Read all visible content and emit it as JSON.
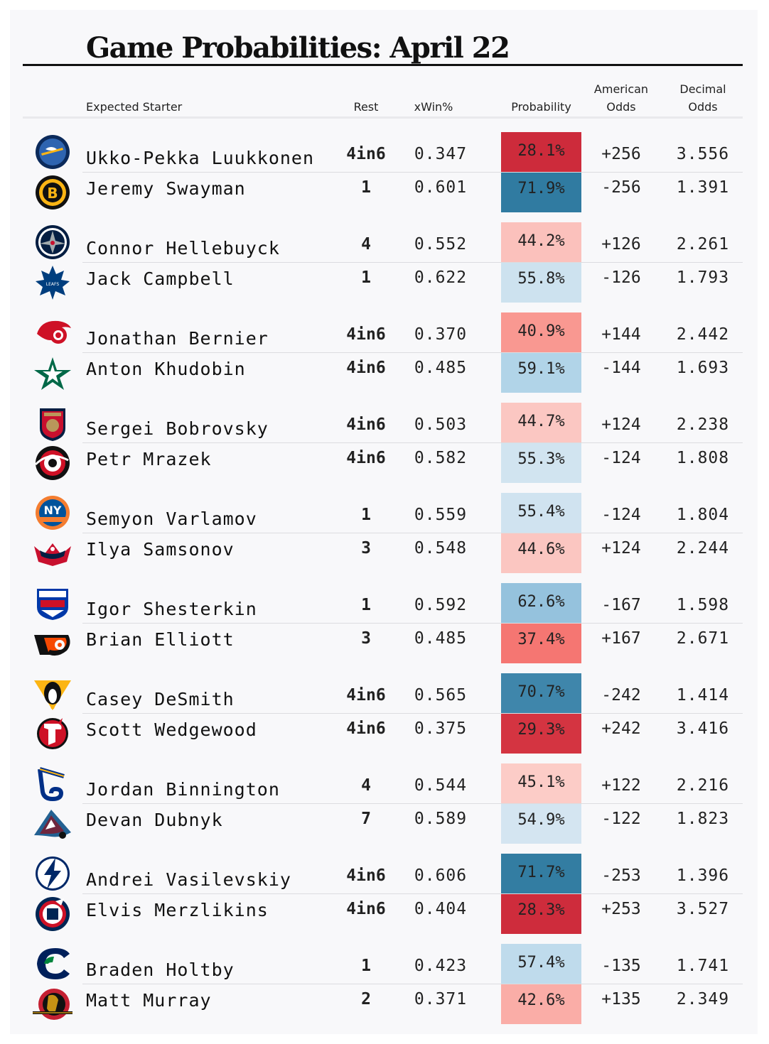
{
  "title": "Game Probabilities: April 22",
  "columns": {
    "starter": "Expected Starter",
    "rest": "Rest",
    "xwin": "xWin%",
    "probability": "Probability",
    "american_1": "American",
    "american_2": "Odds",
    "decimal_1": "Decimal",
    "decimal_2": "Odds"
  },
  "games": [
    {
      "teams": [
        {
          "logo": "sabres-logo",
          "starter": "Ukko-Pekka Luukkonen",
          "rest": "4in6",
          "xwin": "0.347",
          "probability": "28.1%",
          "prob_value": 28.1,
          "american": "+256",
          "decimal": "3.556"
        },
        {
          "logo": "bruins-logo",
          "starter": "Jeremy Swayman",
          "rest": "1",
          "xwin": "0.601",
          "probability": "71.9%",
          "prob_value": 71.9,
          "american": "-256",
          "decimal": "1.391"
        }
      ]
    },
    {
      "teams": [
        {
          "logo": "jets-logo",
          "starter": "Connor Hellebuyck",
          "rest": "4",
          "xwin": "0.552",
          "probability": "44.2%",
          "prob_value": 44.2,
          "american": "+126",
          "decimal": "2.261"
        },
        {
          "logo": "maple-leafs-logo",
          "starter": "Jack Campbell",
          "rest": "1",
          "xwin": "0.622",
          "probability": "55.8%",
          "prob_value": 55.8,
          "american": "-126",
          "decimal": "1.793"
        }
      ]
    },
    {
      "teams": [
        {
          "logo": "red-wings-logo",
          "starter": "Jonathan Bernier",
          "rest": "4in6",
          "xwin": "0.370",
          "probability": "40.9%",
          "prob_value": 40.9,
          "american": "+144",
          "decimal": "2.442"
        },
        {
          "logo": "stars-logo",
          "starter": "Anton Khudobin",
          "rest": "4in6",
          "xwin": "0.485",
          "probability": "59.1%",
          "prob_value": 59.1,
          "american": "-144",
          "decimal": "1.693"
        }
      ]
    },
    {
      "teams": [
        {
          "logo": "panthers-logo",
          "starter": "Sergei Bobrovsky",
          "rest": "4in6",
          "xwin": "0.503",
          "probability": "44.7%",
          "prob_value": 44.7,
          "american": "+124",
          "decimal": "2.238"
        },
        {
          "logo": "hurricanes-logo",
          "starter": "Petr Mrazek",
          "rest": "4in6",
          "xwin": "0.582",
          "probability": "55.3%",
          "prob_value": 55.3,
          "american": "-124",
          "decimal": "1.808"
        }
      ]
    },
    {
      "teams": [
        {
          "logo": "islanders-logo",
          "starter": "Semyon Varlamov",
          "rest": "1",
          "xwin": "0.559",
          "probability": "55.4%",
          "prob_value": 55.4,
          "american": "-124",
          "decimal": "1.804"
        },
        {
          "logo": "capitals-logo",
          "starter": "Ilya Samsonov",
          "rest": "3",
          "xwin": "0.548",
          "probability": "44.6%",
          "prob_value": 44.6,
          "american": "+124",
          "decimal": "2.244"
        }
      ]
    },
    {
      "teams": [
        {
          "logo": "rangers-logo",
          "starter": "Igor Shesterkin",
          "rest": "1",
          "xwin": "0.592",
          "probability": "62.6%",
          "prob_value": 62.6,
          "american": "-167",
          "decimal": "1.598"
        },
        {
          "logo": "flyers-logo",
          "starter": "Brian Elliott",
          "rest": "3",
          "xwin": "0.485",
          "probability": "37.4%",
          "prob_value": 37.4,
          "american": "+167",
          "decimal": "2.671"
        }
      ]
    },
    {
      "teams": [
        {
          "logo": "penguins-logo",
          "starter": "Casey DeSmith",
          "rest": "4in6",
          "xwin": "0.565",
          "probability": "70.7%",
          "prob_value": 70.7,
          "american": "-242",
          "decimal": "1.414"
        },
        {
          "logo": "devils-logo",
          "starter": "Scott Wedgewood",
          "rest": "4in6",
          "xwin": "0.375",
          "probability": "29.3%",
          "prob_value": 29.3,
          "american": "+242",
          "decimal": "3.416"
        }
      ]
    },
    {
      "teams": [
        {
          "logo": "blues-logo",
          "starter": "Jordan Binnington",
          "rest": "4",
          "xwin": "0.544",
          "probability": "45.1%",
          "prob_value": 45.1,
          "american": "+122",
          "decimal": "2.216"
        },
        {
          "logo": "avalanche-logo",
          "starter": "Devan Dubnyk",
          "rest": "7",
          "xwin": "0.589",
          "probability": "54.9%",
          "prob_value": 54.9,
          "american": "-122",
          "decimal": "1.823"
        }
      ]
    },
    {
      "teams": [
        {
          "logo": "lightning-logo",
          "starter": "Andrei Vasilevskiy",
          "rest": "4in6",
          "xwin": "0.606",
          "probability": "71.7%",
          "prob_value": 71.7,
          "american": "-253",
          "decimal": "1.396"
        },
        {
          "logo": "blue-jackets-logo",
          "starter": "Elvis Merzlikins",
          "rest": "4in6",
          "xwin": "0.404",
          "probability": "28.3%",
          "prob_value": 28.3,
          "american": "+253",
          "decimal": "3.527"
        }
      ]
    },
    {
      "teams": [
        {
          "logo": "canucks-logo",
          "starter": "Braden Holtby",
          "rest": "1",
          "xwin": "0.423",
          "probability": "57.4%",
          "prob_value": 57.4,
          "american": "-135",
          "decimal": "1.741"
        },
        {
          "logo": "senators-logo",
          "starter": "Matt Murray",
          "rest": "2",
          "xwin": "0.371",
          "probability": "42.6%",
          "prob_value": 42.6,
          "american": "+135",
          "decimal": "2.349"
        }
      ]
    }
  ],
  "chart_data": {
    "type": "table",
    "title": "Game Probabilities: April 22",
    "columns": [
      "Expected Starter",
      "Rest",
      "xWin%",
      "Probability",
      "American Odds",
      "Decimal Odds"
    ],
    "rows": [
      [
        "Ukko-Pekka Luukkonen",
        "4in6",
        0.347,
        28.1,
        "+256",
        3.556
      ],
      [
        "Jeremy Swayman",
        "1",
        0.601,
        71.9,
        "-256",
        1.391
      ],
      [
        "Connor Hellebuyck",
        "4",
        0.552,
        44.2,
        "+126",
        2.261
      ],
      [
        "Jack Campbell",
        "1",
        0.622,
        55.8,
        "-126",
        1.793
      ],
      [
        "Jonathan Bernier",
        "4in6",
        0.37,
        40.9,
        "+144",
        2.442
      ],
      [
        "Anton Khudobin",
        "4in6",
        0.485,
        59.1,
        "-144",
        1.693
      ],
      [
        "Sergei Bobrovsky",
        "4in6",
        0.503,
        44.7,
        "+124",
        2.238
      ],
      [
        "Petr Mrazek",
        "4in6",
        0.582,
        55.3,
        "-124",
        1.808
      ],
      [
        "Semyon Varlamov",
        "1",
        0.559,
        55.4,
        "-124",
        1.804
      ],
      [
        "Ilya Samsonov",
        "3",
        0.548,
        44.6,
        "+124",
        2.244
      ],
      [
        "Igor Shesterkin",
        "1",
        0.592,
        62.6,
        "-167",
        1.598
      ],
      [
        "Brian Elliott",
        "3",
        0.485,
        37.4,
        "+167",
        2.671
      ],
      [
        "Casey DeSmith",
        "4in6",
        0.565,
        70.7,
        "-242",
        1.414
      ],
      [
        "Scott Wedgewood",
        "4in6",
        0.375,
        29.3,
        "+242",
        3.416
      ],
      [
        "Jordan Binnington",
        "4",
        0.544,
        45.1,
        "+122",
        2.216
      ],
      [
        "Devan Dubnyk",
        "7",
        0.589,
        54.9,
        "-122",
        1.823
      ],
      [
        "Andrei Vasilevskiy",
        "4in6",
        0.606,
        71.7,
        "-253",
        1.396
      ],
      [
        "Elvis Merzlikins",
        "4in6",
        0.404,
        28.3,
        "+253",
        3.527
      ],
      [
        "Braden Holtby",
        "1",
        0.423,
        57.4,
        "-135",
        1.741
      ],
      [
        "Matt Murray",
        "2",
        0.371,
        42.6,
        "+135",
        2.349
      ]
    ],
    "color_scale": {
      "low": "#cc2a3a",
      "mid": "#f8f8fa",
      "high": "#2f7aa0"
    }
  }
}
